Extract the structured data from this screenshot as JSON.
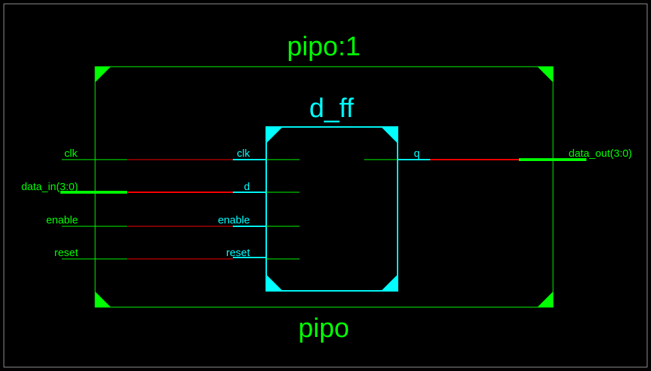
{
  "outer_block": {
    "instance_name": "pipo:1",
    "module_name": "pipo",
    "ports_in": [
      "clk",
      "data_in(3:0)",
      "enable",
      "reset"
    ],
    "ports_out": [
      "data_out(3:0)"
    ]
  },
  "inner_block": {
    "module_name": "d_ff",
    "pins_in": [
      "clk",
      "d",
      "enable",
      "reset"
    ],
    "pins_out": [
      "q"
    ]
  },
  "colors": {
    "background": "#000000",
    "outer_block": "#00ff00",
    "inner_block": "#00ffff",
    "net": "#ff0000",
    "bus": "#00ff00",
    "frame": "#ffffff"
  }
}
